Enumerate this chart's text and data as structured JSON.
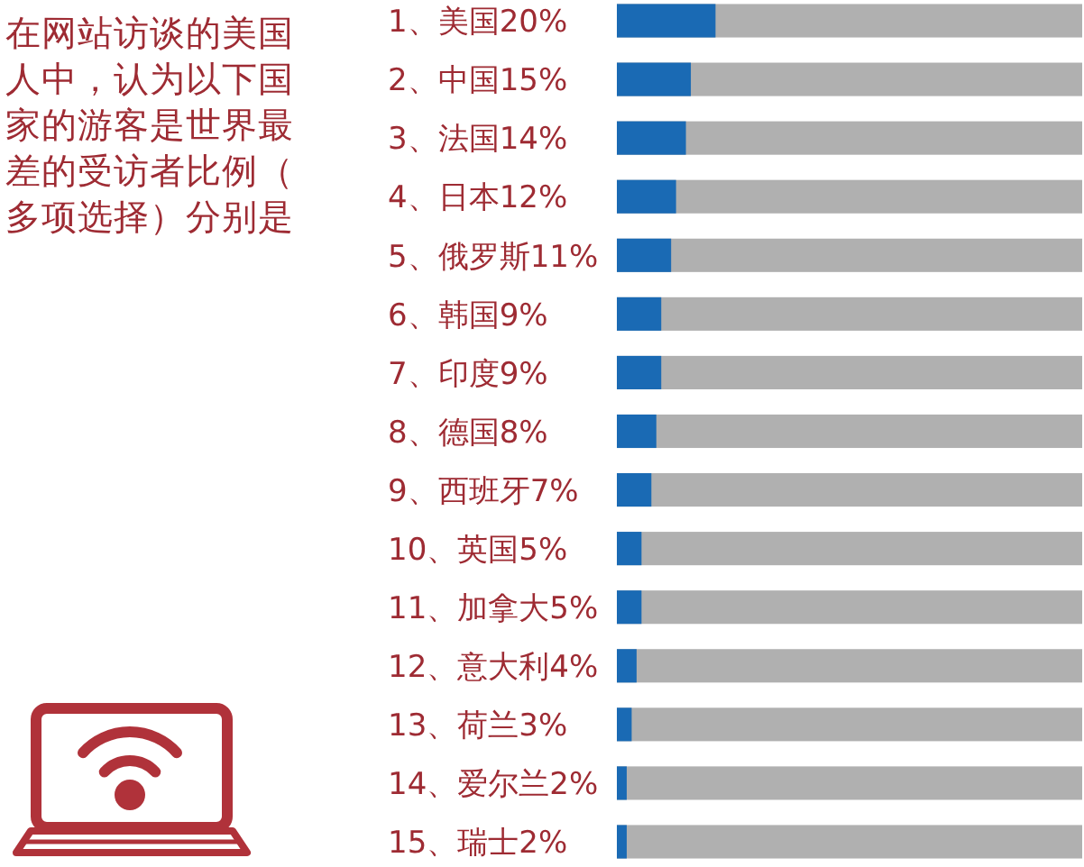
{
  "chart_data": {
    "type": "bar",
    "orientation": "horizontal",
    "title": "在网站访谈的美国人中，认为以下国家的游客是世界最差的受访者比例（多项选择）分别是",
    "categories": [
      "1、美国",
      "2、中国",
      "3、法国",
      "4、日本",
      "5、俄罗斯",
      "6、韩国",
      "7、印度",
      "8、德国",
      "9、西班牙",
      "10、英国",
      "11、加拿大",
      "12、意大利",
      "13、荷兰",
      "14、爱尔兰",
      "15、瑞士"
    ],
    "values": [
      20,
      15,
      14,
      12,
      11,
      9,
      9,
      8,
      7,
      5,
      5,
      4,
      3,
      2,
      2
    ],
    "color": "#1a6ab4",
    "value_labels": [
      "20%",
      "15%",
      "14%",
      "12%",
      "11%",
      "9%",
      "9%",
      "8%",
      "7%",
      "5%",
      "5%",
      "4%",
      "3%",
      "2%",
      "2%"
    ]
  }
}
